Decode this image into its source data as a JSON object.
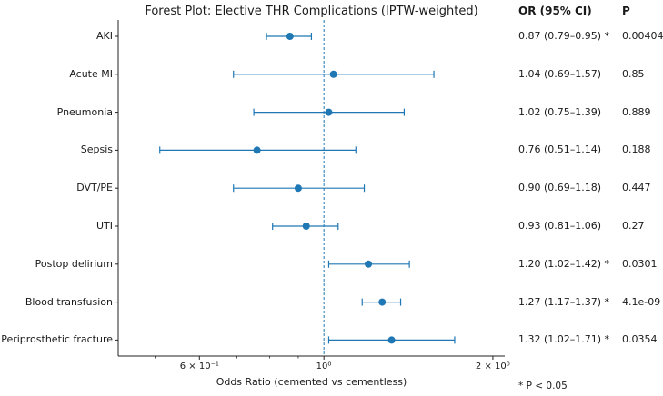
{
  "chart_data": {
    "type": "forest",
    "title": "Forest Plot: Elective THR Complications (IPTW-weighted)",
    "xlabel": "Odds Ratio (cemented vs cementless)",
    "x_scale": "log",
    "xlim": [
      0.43,
      2.1
    ],
    "reference_line": 1.0,
    "x_ticks": [
      {
        "value": 0.6,
        "label": "6 × 10⁻¹"
      },
      {
        "value": 1.0,
        "label": "10⁰"
      },
      {
        "value": 2.0,
        "label": "2 × 10⁰"
      }
    ],
    "color": "#1f77b4",
    "ref_color": "#1f77b4",
    "column_headers": {
      "or": "OR (95% CI)",
      "p": "P"
    },
    "rows": [
      {
        "label": "AKI",
        "or": 0.87,
        "lo": 0.79,
        "hi": 0.95,
        "or_text": "0.87 (0.79–0.95) *",
        "p_text": "0.00404"
      },
      {
        "label": "Acute MI",
        "or": 1.04,
        "lo": 0.69,
        "hi": 1.57,
        "or_text": "1.04 (0.69–1.57)",
        "p_text": "0.85"
      },
      {
        "label": "Pneumonia",
        "or": 1.02,
        "lo": 0.75,
        "hi": 1.39,
        "or_text": "1.02 (0.75–1.39)",
        "p_text": "0.889"
      },
      {
        "label": "Sepsis",
        "or": 0.76,
        "lo": 0.51,
        "hi": 1.14,
        "or_text": "0.76 (0.51–1.14)",
        "p_text": "0.188"
      },
      {
        "label": "DVT/PE",
        "or": 0.9,
        "lo": 0.69,
        "hi": 1.18,
        "or_text": "0.90 (0.69–1.18)",
        "p_text": "0.447"
      },
      {
        "label": "UTI",
        "or": 0.93,
        "lo": 0.81,
        "hi": 1.06,
        "or_text": "0.93 (0.81–1.06)",
        "p_text": "0.27"
      },
      {
        "label": "Postop delirium",
        "or": 1.2,
        "lo": 1.02,
        "hi": 1.42,
        "or_text": "1.20 (1.02–1.42) *",
        "p_text": "0.0301"
      },
      {
        "label": "Blood transfusion",
        "or": 1.27,
        "lo": 1.17,
        "hi": 1.37,
        "or_text": "1.27 (1.17–1.37) *",
        "p_text": "4.1e-09"
      },
      {
        "label": "Periprosthetic fracture",
        "or": 1.32,
        "lo": 1.02,
        "hi": 1.71,
        "or_text": "1.32 (1.02–1.71) *",
        "p_text": "0.0354"
      }
    ],
    "footnote": "* P < 0.05"
  }
}
